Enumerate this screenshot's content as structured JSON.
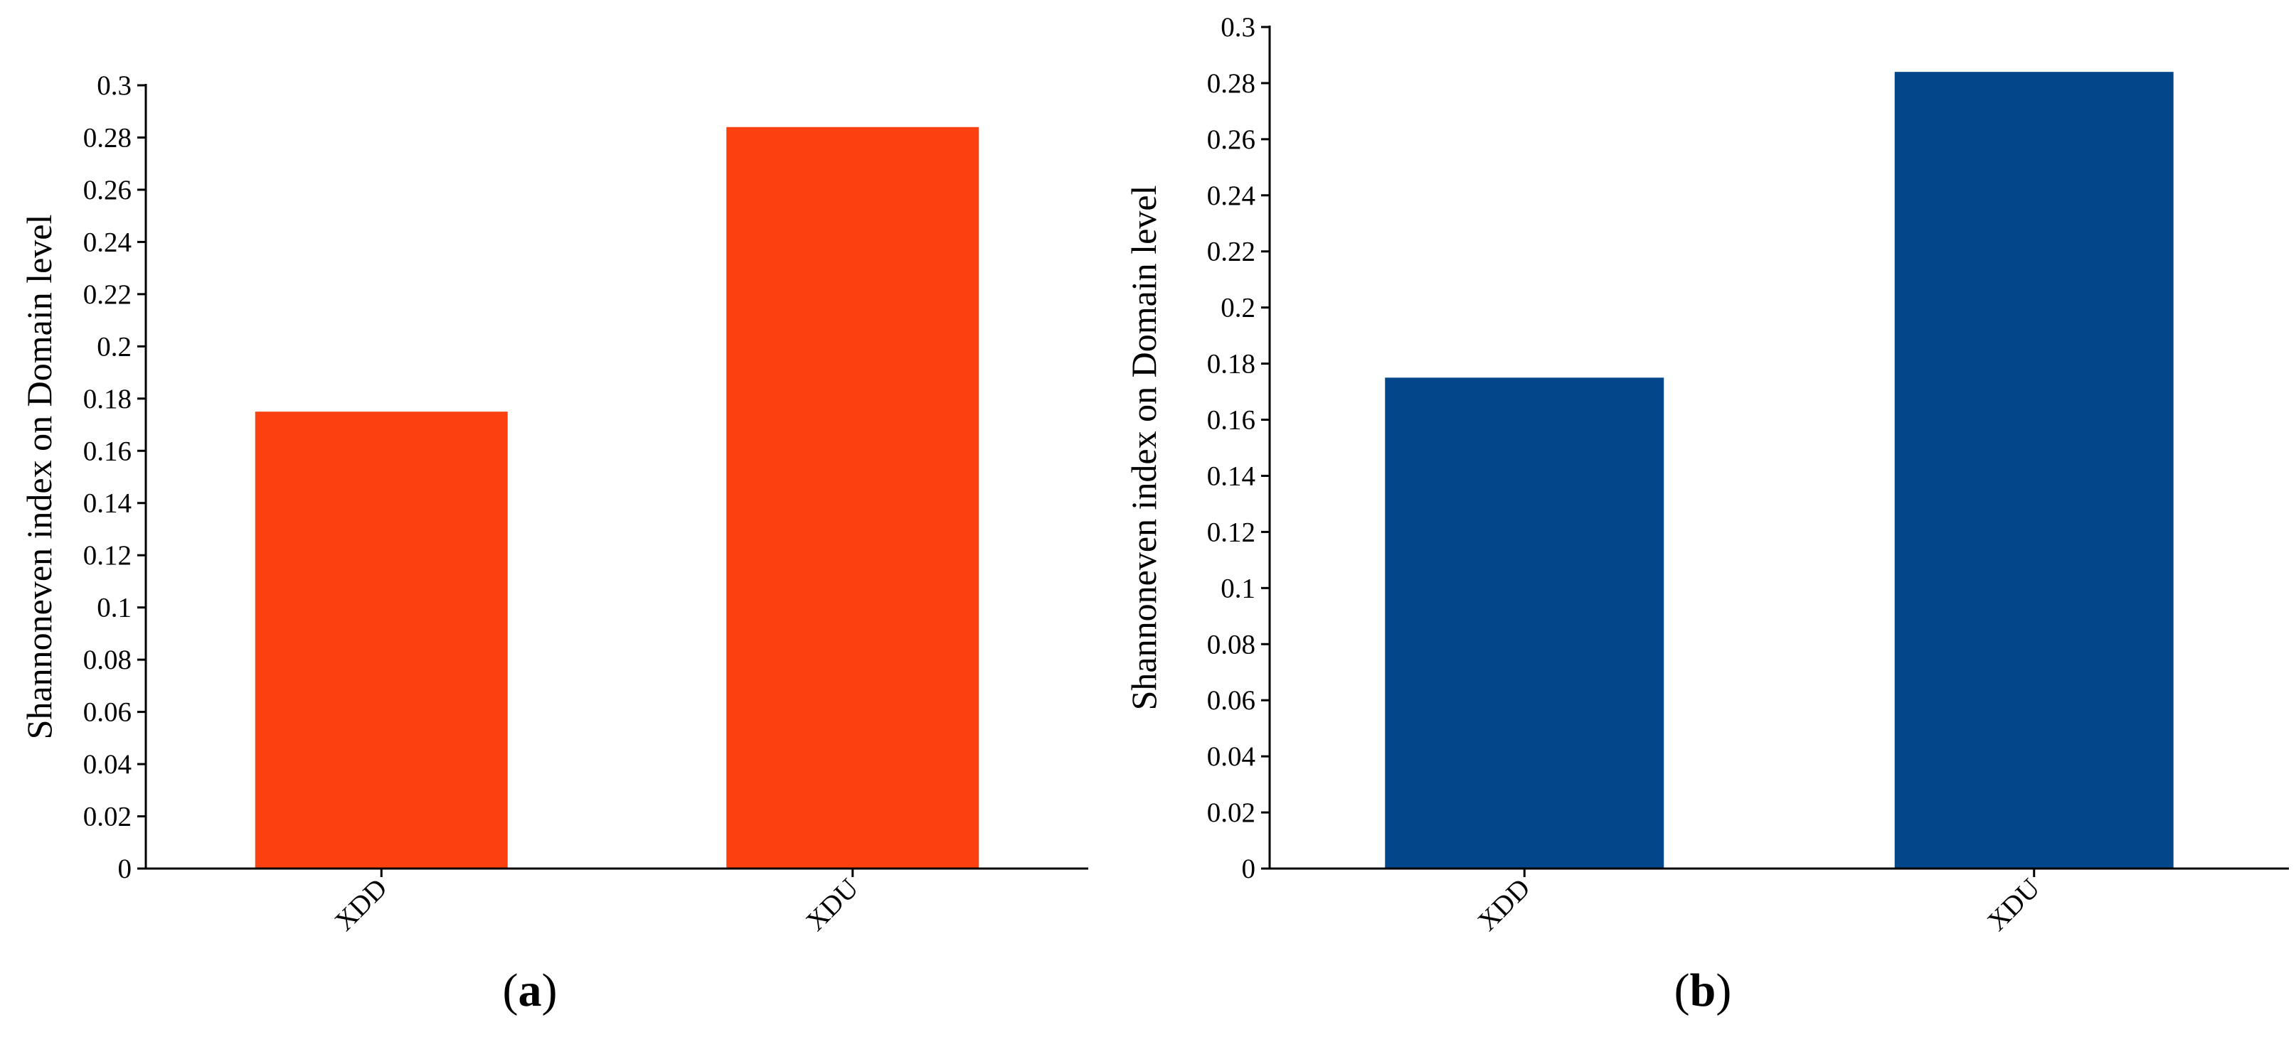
{
  "chart_data": [
    {
      "type": "bar",
      "panel_label": "(a)",
      "panel_letter": "a",
      "categories": [
        "XDD",
        "XDU"
      ],
      "values": [
        0.175,
        0.284
      ],
      "ylabel": "Shannoneven index on Domain level",
      "xlabel": "",
      "ylim": [
        0,
        0.3
      ],
      "yticks": [
        "0",
        "0.02",
        "0.04",
        "0.06",
        "0.08",
        "0.1",
        "0.12",
        "0.14",
        "0.16",
        "0.18",
        "0.2",
        "0.22",
        "0.24",
        "0.26",
        "0.28",
        "0.3"
      ],
      "bar_color": "#fc4110",
      "grid": false
    },
    {
      "type": "bar",
      "panel_label": "(b)",
      "panel_letter": "b",
      "categories": [
        "XDD",
        "XDU"
      ],
      "values": [
        0.175,
        0.284
      ],
      "ylabel": "Shannoneven index on Domain level",
      "xlabel": "",
      "ylim": [
        0,
        0.3
      ],
      "yticks": [
        "0",
        "0.02",
        "0.04",
        "0.06",
        "0.08",
        "0.1",
        "0.12",
        "0.14",
        "0.16",
        "0.18",
        "0.2",
        "0.22",
        "0.24",
        "0.26",
        "0.28",
        "0.3"
      ],
      "bar_color": "#03468a",
      "grid": false
    }
  ]
}
